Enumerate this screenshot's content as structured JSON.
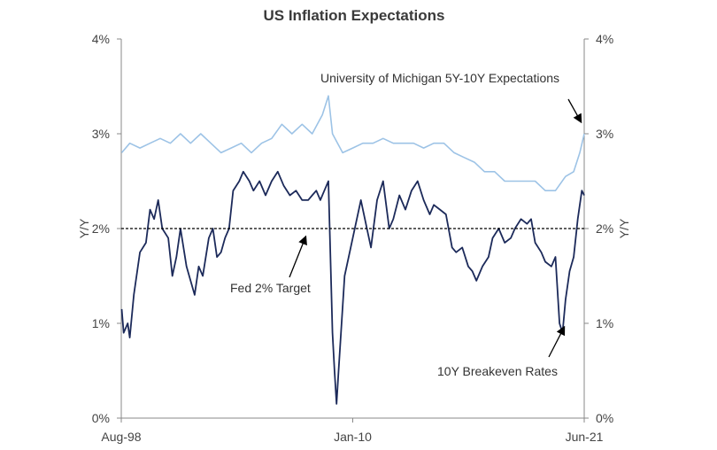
{
  "chart_data": {
    "type": "line",
    "title": "US Inflation Expectations",
    "ylabel_left": "Y/Y",
    "ylabel_right": "Y/Y",
    "x_tick_labels": [
      "Aug-98",
      "Jan-10",
      "Jun-21"
    ],
    "x_tick_dates": [
      1998.58,
      2010.0,
      2021.42
    ],
    "x_range": [
      1998.58,
      2021.42
    ],
    "y_ticks": [
      "0%",
      "1%",
      "2%",
      "3%",
      "4%"
    ],
    "y_range": [
      0,
      4
    ],
    "grid": false,
    "series": [
      {
        "name": "University of Michigan 5Y-10Y Expectations",
        "color": "#9dc3e6",
        "points": [
          [
            1998.6,
            2.8
          ],
          [
            1999.0,
            2.9
          ],
          [
            1999.5,
            2.85
          ],
          [
            2000.0,
            2.9
          ],
          [
            2000.5,
            2.95
          ],
          [
            2001.0,
            2.9
          ],
          [
            2001.5,
            3.0
          ],
          [
            2002.0,
            2.9
          ],
          [
            2002.5,
            3.0
          ],
          [
            2003.0,
            2.9
          ],
          [
            2003.5,
            2.8
          ],
          [
            2004.0,
            2.85
          ],
          [
            2004.5,
            2.9
          ],
          [
            2005.0,
            2.8
          ],
          [
            2005.5,
            2.9
          ],
          [
            2006.0,
            2.95
          ],
          [
            2006.5,
            3.1
          ],
          [
            2007.0,
            3.0
          ],
          [
            2007.5,
            3.1
          ],
          [
            2008.0,
            3.0
          ],
          [
            2008.5,
            3.2
          ],
          [
            2008.8,
            3.4
          ],
          [
            2009.0,
            3.0
          ],
          [
            2009.5,
            2.8
          ],
          [
            2010.0,
            2.85
          ],
          [
            2010.5,
            2.9
          ],
          [
            2011.0,
            2.9
          ],
          [
            2011.5,
            2.95
          ],
          [
            2012.0,
            2.9
          ],
          [
            2012.5,
            2.9
          ],
          [
            2013.0,
            2.9
          ],
          [
            2013.5,
            2.85
          ],
          [
            2014.0,
            2.9
          ],
          [
            2014.5,
            2.9
          ],
          [
            2015.0,
            2.8
          ],
          [
            2015.5,
            2.75
          ],
          [
            2016.0,
            2.7
          ],
          [
            2016.5,
            2.6
          ],
          [
            2017.0,
            2.6
          ],
          [
            2017.5,
            2.5
          ],
          [
            2018.0,
            2.5
          ],
          [
            2018.5,
            2.5
          ],
          [
            2019.0,
            2.5
          ],
          [
            2019.5,
            2.4
          ],
          [
            2020.0,
            2.4
          ],
          [
            2020.5,
            2.55
          ],
          [
            2020.9,
            2.6
          ],
          [
            2021.2,
            2.8
          ],
          [
            2021.42,
            3.0
          ]
        ]
      },
      {
        "name": "10Y Breakeven Rates",
        "color": "#1c2a5a",
        "points": [
          [
            1998.6,
            1.15
          ],
          [
            1998.7,
            0.9
          ],
          [
            1998.9,
            1.0
          ],
          [
            1999.0,
            0.85
          ],
          [
            1999.2,
            1.3
          ],
          [
            1999.5,
            1.75
          ],
          [
            1999.8,
            1.85
          ],
          [
            2000.0,
            2.2
          ],
          [
            2000.2,
            2.1
          ],
          [
            2000.4,
            2.3
          ],
          [
            2000.6,
            2.0
          ],
          [
            2000.9,
            1.9
          ],
          [
            2001.1,
            1.5
          ],
          [
            2001.3,
            1.7
          ],
          [
            2001.5,
            2.0
          ],
          [
            2001.8,
            1.6
          ],
          [
            2002.0,
            1.45
          ],
          [
            2002.2,
            1.3
          ],
          [
            2002.4,
            1.6
          ],
          [
            2002.6,
            1.5
          ],
          [
            2002.9,
            1.9
          ],
          [
            2003.1,
            2.0
          ],
          [
            2003.3,
            1.7
          ],
          [
            2003.5,
            1.75
          ],
          [
            2003.7,
            1.9
          ],
          [
            2003.9,
            2.0
          ],
          [
            2004.1,
            2.4
          ],
          [
            2004.4,
            2.5
          ],
          [
            2004.6,
            2.6
          ],
          [
            2004.9,
            2.5
          ],
          [
            2005.1,
            2.4
          ],
          [
            2005.4,
            2.5
          ],
          [
            2005.7,
            2.35
          ],
          [
            2006.0,
            2.5
          ],
          [
            2006.3,
            2.6
          ],
          [
            2006.6,
            2.45
          ],
          [
            2006.9,
            2.35
          ],
          [
            2007.2,
            2.4
          ],
          [
            2007.5,
            2.3
          ],
          [
            2007.8,
            2.3
          ],
          [
            2008.0,
            2.35
          ],
          [
            2008.2,
            2.4
          ],
          [
            2008.4,
            2.3
          ],
          [
            2008.6,
            2.4
          ],
          [
            2008.8,
            2.5
          ],
          [
            2009.0,
            0.9
          ],
          [
            2009.1,
            0.5
          ],
          [
            2009.2,
            0.15
          ],
          [
            2009.3,
            0.5
          ],
          [
            2009.6,
            1.5
          ],
          [
            2009.9,
            1.8
          ],
          [
            2010.2,
            2.1
          ],
          [
            2010.4,
            2.3
          ],
          [
            2010.7,
            2.0
          ],
          [
            2010.9,
            1.8
          ],
          [
            2011.2,
            2.3
          ],
          [
            2011.5,
            2.5
          ],
          [
            2011.8,
            2.0
          ],
          [
            2012.0,
            2.1
          ],
          [
            2012.3,
            2.35
          ],
          [
            2012.6,
            2.2
          ],
          [
            2012.9,
            2.4
          ],
          [
            2013.2,
            2.5
          ],
          [
            2013.5,
            2.3
          ],
          [
            2013.8,
            2.15
          ],
          [
            2014.0,
            2.25
          ],
          [
            2014.3,
            2.2
          ],
          [
            2014.6,
            2.15
          ],
          [
            2014.9,
            1.8
          ],
          [
            2015.1,
            1.75
          ],
          [
            2015.4,
            1.8
          ],
          [
            2015.7,
            1.6
          ],
          [
            2015.9,
            1.55
          ],
          [
            2016.1,
            1.45
          ],
          [
            2016.4,
            1.6
          ],
          [
            2016.7,
            1.7
          ],
          [
            2016.9,
            1.9
          ],
          [
            2017.2,
            2.0
          ],
          [
            2017.5,
            1.85
          ],
          [
            2017.8,
            1.9
          ],
          [
            2018.0,
            2.0
          ],
          [
            2018.3,
            2.1
          ],
          [
            2018.6,
            2.05
          ],
          [
            2018.8,
            2.1
          ],
          [
            2019.0,
            1.85
          ],
          [
            2019.3,
            1.75
          ],
          [
            2019.5,
            1.65
          ],
          [
            2019.8,
            1.6
          ],
          [
            2020.0,
            1.7
          ],
          [
            2020.2,
            1.0
          ],
          [
            2020.35,
            0.9
          ],
          [
            2020.5,
            1.25
          ],
          [
            2020.7,
            1.55
          ],
          [
            2020.9,
            1.7
          ],
          [
            2021.1,
            2.1
          ],
          [
            2021.3,
            2.4
          ],
          [
            2021.42,
            2.35
          ]
        ]
      },
      {
        "name": "Fed 2% Target",
        "color": "#000000",
        "points": [
          [
            1998.58,
            2.0
          ],
          [
            2021.42,
            2.0
          ]
        ]
      }
    ],
    "annotations": [
      {
        "text": "University of Michigan 5Y-10Y Expectations"
      },
      {
        "text": "Fed 2% Target"
      },
      {
        "text": "10Y Breakeven Rates"
      }
    ]
  }
}
